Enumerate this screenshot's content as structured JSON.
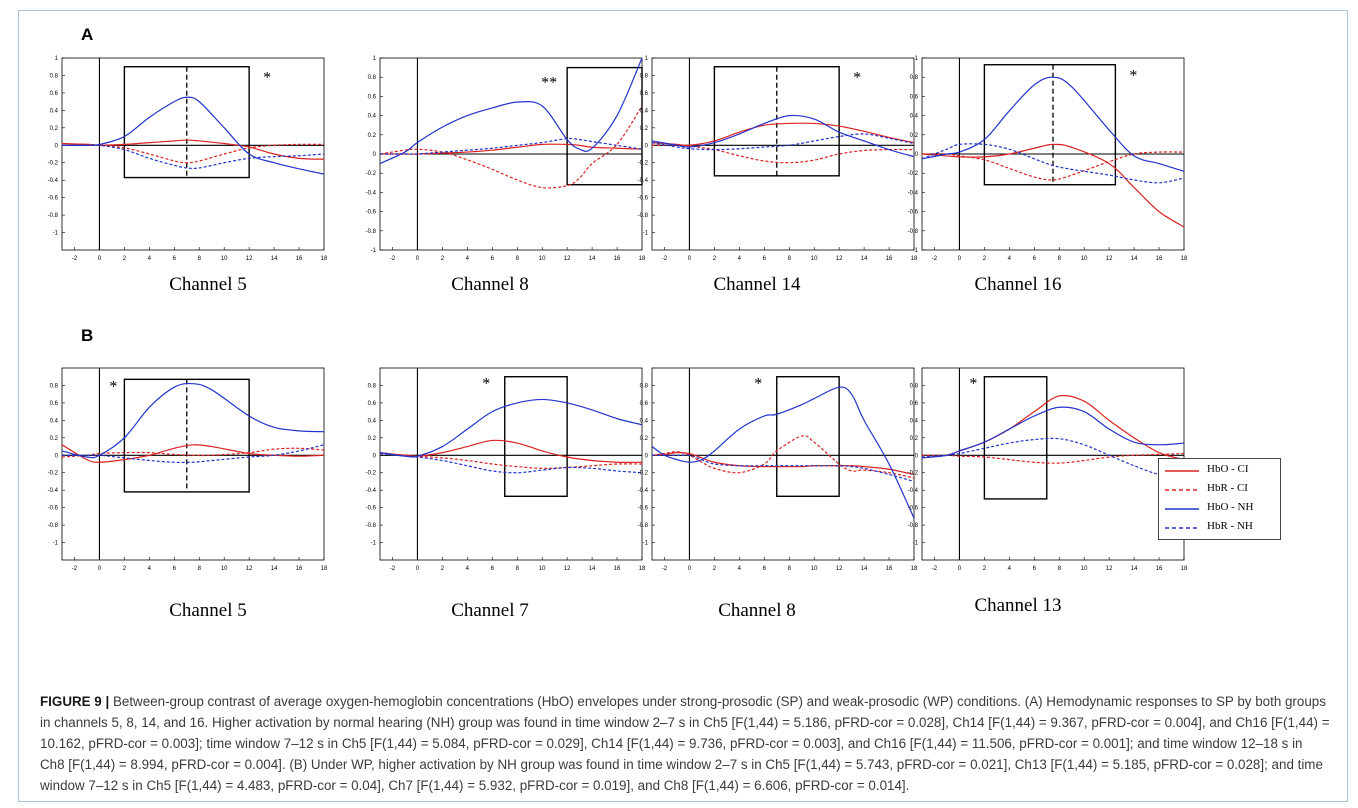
{
  "panels": {
    "A": "A",
    "B": "B"
  },
  "legend": [
    "HbO - CI",
    "HbR - CI",
    "HbO - NH",
    "HbR - NH"
  ],
  "colors": {
    "CI": "#dd2222",
    "NH": "#2233cc",
    "axis": "#000000",
    "frame": "#a9c3d9"
  },
  "caption": {
    "figure_number": "FIGURE 9 |",
    "text": " Between-group contrast of average oxygen-hemoglobin concentrations (HbO) envelopes under strong-prosodic (SP) and weak-prosodic (WP) conditions. (A) Hemodynamic responses to SP by both groups in channels 5, 8, 14, and 16. Higher activation by normal hearing (NH) group was found in time window 2–7 s in Ch5 [F(1,44) = 5.186, pFRD-cor = 0.028], Ch14 [F(1,44) = 9.367, pFRD-cor = 0.004], and Ch16 [F(1,44) = 10.162, pFRD-cor = 0.003]; time window 7–12 s in Ch5 [F(1,44) = 5.084, pFRD-cor = 0.029], Ch14 [F(1,44) = 9.736, pFRD-cor = 0.003], and Ch16 [F(1,44) = 11.506, pFRD-cor = 0.001]; and time window 12–18 s in Ch8 [F(1,44) = 8.994, pFRD-cor = 0.004]. (B) Under WP, higher activation by NH group was found in time window 2–7 s in Ch5 [F(1,44) = 5.743, pFRD-cor = 0.021], Ch13 [F(1,44) = 5.185, pFRD-cor = 0.028]; and time window 7–12 s in Ch5 [F(1,44) = 4.483, pFRD-cor = 0.04], Ch7 [F(1,44) = 5.932, pFRD-cor = 0.019], and Ch8 [F(1,44) = 6.606, pFRD-cor = 0.014]."
  },
  "chart_data": [
    {
      "type": "line",
      "panel": "A",
      "title": "Channel 5",
      "xlim": [
        -3,
        18
      ],
      "ylim": [
        -1.2,
        1.0
      ],
      "xticks": [
        -2,
        0,
        2,
        4,
        6,
        8,
        10,
        12,
        14,
        16,
        18
      ],
      "yticks": [
        -1,
        -0.8,
        -0.6,
        -0.4,
        -0.2,
        0,
        0.2,
        0.4,
        0.6,
        0.8,
        1
      ],
      "boxes": [
        [
          2,
          12
        ]
      ],
      "dashed_v": [
        7
      ],
      "annotation": "*",
      "box_y": [
        -0.37,
        0.9
      ],
      "x": [
        -3,
        -1,
        0,
        2,
        4,
        6,
        7,
        8,
        10,
        12,
        14,
        16,
        18
      ],
      "series": [
        {
          "name": "HbO - CI",
          "values": [
            0.02,
            0.01,
            0,
            0.01,
            0.03,
            0.05,
            0.06,
            0.05,
            0.02,
            -0.02,
            -0.1,
            -0.15,
            -0.16
          ]
        },
        {
          "name": "HbR - CI",
          "values": [
            0,
            0.01,
            0,
            -0.03,
            -0.1,
            -0.18,
            -0.2,
            -0.18,
            -0.1,
            -0.03,
            0,
            0.01,
            0.01
          ]
        },
        {
          "name": "HbO - NH",
          "values": [
            0,
            0,
            0.01,
            0.1,
            0.32,
            0.5,
            0.55,
            0.5,
            0.2,
            -0.1,
            -0.2,
            -0.27,
            -0.33
          ]
        },
        {
          "name": "HbR - NH",
          "values": [
            0,
            0,
            0,
            -0.05,
            -0.15,
            -0.23,
            -0.26,
            -0.26,
            -0.2,
            -0.15,
            -0.13,
            -0.12,
            -0.1
          ]
        }
      ]
    },
    {
      "type": "line",
      "panel": "A",
      "title": "Channel 8",
      "xlim": [
        -3,
        18
      ],
      "ylim": [
        -1.0,
        1.0
      ],
      "xticks": [
        -2,
        0,
        2,
        4,
        6,
        8,
        10,
        12,
        14,
        16,
        18
      ],
      "yticks": [
        -1,
        -0.8,
        -0.6,
        -0.4,
        -0.2,
        0,
        0.2,
        0.4,
        0.6,
        0.8,
        1
      ],
      "boxes": [
        [
          12,
          18
        ]
      ],
      "dashed_v": [],
      "annotation": "**",
      "box_y": [
        -0.32,
        0.9
      ],
      "x": [
        -3,
        -1,
        0,
        2,
        4,
        6,
        8,
        10,
        12,
        13,
        14,
        16,
        18
      ],
      "series": [
        {
          "name": "HbO - CI",
          "values": [
            0,
            0,
            0,
            0.01,
            0.02,
            0.04,
            0.07,
            0.1,
            0.1,
            0.09,
            0.07,
            0.06,
            0.05
          ]
        },
        {
          "name": "HbR - CI",
          "values": [
            0,
            0.04,
            0.05,
            0.02,
            -0.06,
            -0.16,
            -0.27,
            -0.35,
            -0.33,
            -0.25,
            -0.1,
            0.1,
            0.5
          ]
        },
        {
          "name": "HbO - NH",
          "values": [
            -0.1,
            0.02,
            0.12,
            0.28,
            0.4,
            0.48,
            0.54,
            0.5,
            0.15,
            0.05,
            0.06,
            0.4,
            1.0
          ]
        },
        {
          "name": "HbR - NH",
          "values": [
            0,
            0,
            0,
            0.02,
            0.04,
            0.06,
            0.09,
            0.12,
            0.16,
            0.15,
            0.13,
            0.09,
            0.05
          ]
        }
      ]
    },
    {
      "type": "line",
      "panel": "A",
      "title": "Channel 14",
      "xlim": [
        -3,
        18
      ],
      "ylim": [
        -1.2,
        1.0
      ],
      "xticks": [
        -2,
        0,
        2,
        4,
        6,
        8,
        10,
        12,
        14,
        16,
        18
      ],
      "yticks": [
        -1,
        -0.8,
        -0.6,
        -0.4,
        -0.2,
        0,
        0.2,
        0.4,
        0.6,
        0.8,
        1
      ],
      "boxes": [
        [
          2,
          12
        ]
      ],
      "dashed_v": [
        7
      ],
      "annotation": "*",
      "box_y": [
        -0.35,
        0.9
      ],
      "x": [
        -3,
        -1,
        0,
        2,
        4,
        6,
        8,
        10,
        12,
        14,
        16,
        18
      ],
      "series": [
        {
          "name": "HbO - CI",
          "values": [
            0.03,
            0.01,
            0,
            0.05,
            0.15,
            0.23,
            0.25,
            0.25,
            0.22,
            0.16,
            0.09,
            0.03
          ]
        },
        {
          "name": "HbR - CI",
          "values": [
            0,
            0,
            -0.01,
            -0.05,
            -0.12,
            -0.18,
            -0.2,
            -0.17,
            -0.1,
            -0.06,
            -0.05,
            -0.05
          ]
        },
        {
          "name": "HbO - NH",
          "values": [
            0.05,
            0,
            -0.02,
            0.03,
            0.13,
            0.25,
            0.34,
            0.3,
            0.15,
            0.05,
            -0.05,
            -0.13
          ]
        },
        {
          "name": "HbR - NH",
          "values": [
            0.03,
            -0.02,
            -0.04,
            -0.05,
            -0.04,
            -0.02,
            0,
            0.05,
            0.1,
            0.13,
            0.08,
            0.02
          ]
        }
      ]
    },
    {
      "type": "line",
      "panel": "A",
      "title": "Channel 16",
      "xlim": [
        -3,
        18
      ],
      "ylim": [
        -1.0,
        1.0
      ],
      "xticks": [
        -2,
        0,
        2,
        4,
        6,
        8,
        10,
        12,
        14,
        16,
        18
      ],
      "yticks": [
        -1,
        -0.8,
        -0.6,
        -0.4,
        -0.2,
        0,
        0.2,
        0.4,
        0.6,
        0.8,
        1
      ],
      "boxes": [
        [
          2,
          12.5
        ]
      ],
      "dashed_v": [
        7.5
      ],
      "annotation": "*",
      "box_y": [
        -0.32,
        0.93
      ],
      "x": [
        -3,
        -1,
        0,
        2,
        4,
        6,
        7.5,
        9,
        12,
        14,
        16,
        18
      ],
      "series": [
        {
          "name": "HbO - CI",
          "values": [
            0,
            -0.02,
            -0.03,
            -0.03,
            0,
            0.06,
            0.1,
            0.07,
            -0.1,
            -0.35,
            -0.6,
            -0.76
          ]
        },
        {
          "name": "HbR - CI",
          "values": [
            0,
            0,
            -0.02,
            -0.06,
            -0.15,
            -0.24,
            -0.27,
            -0.22,
            -0.08,
            0,
            0.02,
            0.02
          ]
        },
        {
          "name": "HbO - NH",
          "values": [
            -0.05,
            0,
            0.02,
            0.15,
            0.45,
            0.72,
            0.8,
            0.7,
            0.25,
            -0.02,
            -0.1,
            -0.18
          ]
        },
        {
          "name": "HbR - NH",
          "values": [
            -0.05,
            0.05,
            0.1,
            0.1,
            0.05,
            -0.05,
            -0.12,
            -0.16,
            -0.22,
            -0.27,
            -0.3,
            -0.25
          ]
        }
      ]
    },
    {
      "type": "line",
      "panel": "B",
      "title": "Channel 5",
      "xlim": [
        -3,
        18
      ],
      "ylim": [
        -1.2,
        1.0
      ],
      "xticks": [
        -2,
        0,
        2,
        4,
        6,
        8,
        10,
        12,
        14,
        16,
        18
      ],
      "yticks": [
        -1,
        -0.8,
        -0.6,
        -0.4,
        -0.2,
        0,
        0.2,
        0.4,
        0.6,
        0.8
      ],
      "boxes": [
        [
          2,
          12
        ]
      ],
      "dashed_v": [
        7
      ],
      "annotation": "*",
      "annotation_x": 0.8,
      "box_y": [
        -0.42,
        0.87
      ],
      "x": [
        -3,
        -1,
        0,
        2,
        4,
        6,
        7.5,
        9,
        12,
        14,
        16,
        18
      ],
      "series": [
        {
          "name": "HbO - CI",
          "values": [
            0.12,
            -0.05,
            -0.08,
            -0.05,
            0,
            0.08,
            0.12,
            0.1,
            0.02,
            0,
            -0.01,
            0
          ]
        },
        {
          "name": "HbR - CI",
          "values": [
            -0.02,
            0,
            0.02,
            0.03,
            0.03,
            0.01,
            0,
            0,
            0.03,
            0.07,
            0.08,
            0.06
          ]
        },
        {
          "name": "HbO - NH",
          "values": [
            0.05,
            -0.02,
            0,
            0.2,
            0.55,
            0.78,
            0.82,
            0.75,
            0.45,
            0.32,
            0.28,
            0.27
          ]
        },
        {
          "name": "HbR - NH",
          "values": [
            0,
            0,
            0,
            -0.03,
            -0.06,
            -0.08,
            -0.08,
            -0.06,
            -0.02,
            0,
            0.05,
            0.12
          ]
        }
      ]
    },
    {
      "type": "line",
      "panel": "B",
      "title": "Channel 7",
      "xlim": [
        -3,
        18
      ],
      "ylim": [
        -1.2,
        1.0
      ],
      "xticks": [
        -2,
        0,
        2,
        4,
        6,
        8,
        10,
        12,
        14,
        16,
        18
      ],
      "yticks": [
        -1,
        -0.8,
        -0.6,
        -0.4,
        -0.2,
        0,
        0.2,
        0.4,
        0.6,
        0.8
      ],
      "boxes": [
        [
          7,
          12
        ]
      ],
      "dashed_v": [],
      "annotation": "*",
      "annotation_x": 5.2,
      "box_y": [
        -0.47,
        0.9
      ],
      "x": [
        -3,
        -1,
        0,
        2,
        4,
        6,
        8,
        10,
        12,
        14,
        16,
        18
      ],
      "series": [
        {
          "name": "HbO - CI",
          "values": [
            0.03,
            0,
            -0.01,
            0.03,
            0.1,
            0.17,
            0.14,
            0.05,
            -0.02,
            -0.06,
            -0.08,
            -0.08
          ]
        },
        {
          "name": "HbR - CI",
          "values": [
            0.02,
            0,
            -0.01,
            -0.03,
            -0.06,
            -0.1,
            -0.13,
            -0.15,
            -0.14,
            -0.12,
            -0.1,
            -0.1
          ]
        },
        {
          "name": "HbO - NH",
          "values": [
            0.03,
            -0.01,
            -0.01,
            0.1,
            0.3,
            0.5,
            0.6,
            0.64,
            0.6,
            0.52,
            0.42,
            0.35
          ]
        },
        {
          "name": "HbR - NH",
          "values": [
            0.02,
            -0.01,
            -0.02,
            -0.06,
            -0.12,
            -0.18,
            -0.2,
            -0.17,
            -0.14,
            -0.15,
            -0.18,
            -0.2
          ]
        }
      ]
    },
    {
      "type": "line",
      "panel": "B",
      "title": "Channel 8",
      "xlim": [
        -3,
        18
      ],
      "ylim": [
        -1.2,
        1.0
      ],
      "xticks": [
        -2,
        0,
        2,
        4,
        6,
        8,
        10,
        12,
        14,
        16,
        18
      ],
      "yticks": [
        -1,
        -0.8,
        -0.6,
        -0.4,
        -0.2,
        0,
        0.2,
        0.4,
        0.6,
        0.8
      ],
      "boxes": [
        [
          7,
          12
        ]
      ],
      "dashed_v": [],
      "annotation": "*",
      "annotation_x": 5.2,
      "box_y": [
        -0.47,
        0.9
      ],
      "x": [
        -3,
        -2,
        -1,
        0,
        1,
        2,
        4,
        6,
        7,
        9,
        10,
        12,
        13,
        14,
        16,
        18
      ],
      "series": [
        {
          "name": "HbO - CI",
          "values": [
            0,
            0.01,
            0.03,
            0.02,
            -0.03,
            -0.08,
            -0.12,
            -0.13,
            -0.13,
            -0.13,
            -0.12,
            -0.12,
            -0.12,
            -0.13,
            -0.16,
            -0.22
          ]
        },
        {
          "name": "HbR - CI",
          "values": [
            0,
            0.02,
            0.04,
            0,
            -0.08,
            -0.15,
            -0.2,
            -0.1,
            0.05,
            0.22,
            0.15,
            -0.1,
            -0.18,
            -0.17,
            -0.2,
            -0.26
          ]
        },
        {
          "name": "HbO - NH",
          "values": [
            0.1,
            0,
            -0.05,
            -0.08,
            -0.05,
            0.05,
            0.3,
            0.45,
            0.47,
            0.58,
            0.65,
            0.78,
            0.7,
            0.4,
            -0.1,
            -0.72
          ]
        },
        {
          "name": "HbR - NH",
          "values": [
            0,
            0,
            0,
            0,
            -0.05,
            -0.1,
            -0.12,
            -0.12,
            -0.12,
            -0.12,
            -0.12,
            -0.12,
            -0.13,
            -0.15,
            -0.22,
            -0.3
          ]
        }
      ]
    },
    {
      "type": "line",
      "panel": "B",
      "title": "Channel 13",
      "xlim": [
        -3,
        18
      ],
      "ylim": [
        -1.2,
        1.0
      ],
      "xticks": [
        -2,
        0,
        2,
        4,
        6,
        8,
        10,
        12,
        14,
        16,
        18
      ],
      "yticks": [
        -1,
        -0.8,
        -0.6,
        -0.4,
        -0.2,
        0,
        0.2,
        0.4,
        0.6,
        0.8
      ],
      "boxes": [
        [
          2,
          7
        ]
      ],
      "dashed_v": [],
      "annotation": "*",
      "annotation_x": 0.8,
      "box_y": [
        -0.5,
        0.9
      ],
      "x": [
        -3,
        -1,
        0,
        2,
        4,
        6,
        8,
        10,
        12,
        14,
        16,
        18
      ],
      "series": [
        {
          "name": "HbO - CI",
          "values": [
            -0.03,
            0,
            0.05,
            0.15,
            0.3,
            0.5,
            0.68,
            0.62,
            0.4,
            0.2,
            0.03,
            -0.05
          ]
        },
        {
          "name": "HbR - CI",
          "values": [
            0,
            0,
            -0.01,
            -0.02,
            -0.05,
            -0.08,
            -0.09,
            -0.06,
            -0.02,
            0,
            0.01,
            0.02
          ]
        },
        {
          "name": "HbO - NH",
          "values": [
            -0.03,
            0,
            0.05,
            0.15,
            0.3,
            0.45,
            0.55,
            0.5,
            0.3,
            0.15,
            0.12,
            0.14
          ]
        },
        {
          "name": "HbR - NH",
          "values": [
            -0.02,
            0,
            0.02,
            0.08,
            0.14,
            0.18,
            0.19,
            0.12,
            0,
            -0.12,
            -0.22,
            -0.25
          ]
        }
      ]
    }
  ]
}
